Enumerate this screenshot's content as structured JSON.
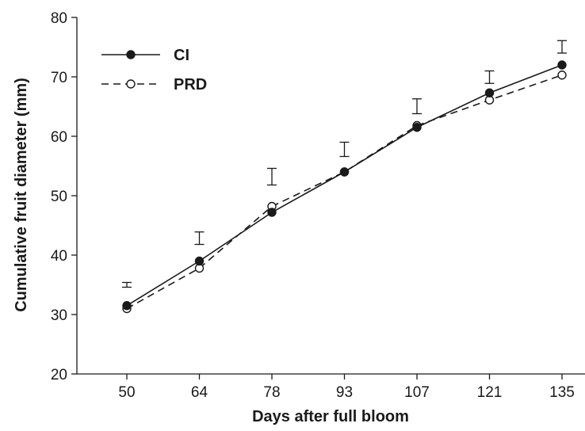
{
  "chart_data": {
    "type": "line",
    "title": "",
    "xlabel": "Days after full bloom",
    "ylabel": "Cumulative fruit diameter (mm)",
    "categories": [
      "50",
      "64",
      "78",
      "93",
      "107",
      "121",
      "135"
    ],
    "x": [
      50,
      64,
      78,
      93,
      107,
      121,
      135
    ],
    "ylim": [
      20,
      80
    ],
    "yticks": [
      "20",
      "30",
      "40",
      "50",
      "60",
      "70",
      "80"
    ],
    "grid": false,
    "legend_position": "top-left",
    "series": [
      {
        "name": "CI",
        "values": [
          31.5,
          39.0,
          47.2,
          54.0,
          61.5,
          67.3,
          72.0
        ],
        "line_style": "solid",
        "marker": "filled-circle",
        "color": "#1a1a1a"
      },
      {
        "name": "PRD",
        "values": [
          31.0,
          37.8,
          48.2,
          54.0,
          61.8,
          66.1,
          70.3
        ],
        "line_style": "dashed",
        "marker": "open-circle",
        "color": "#1a1a1a"
      }
    ],
    "error_bars": [
      {
        "x": 50,
        "low": 34.6,
        "high": 35.4
      },
      {
        "x": 64,
        "low": 41.8,
        "high": 43.9
      },
      {
        "x": 78,
        "low": 51.8,
        "high": 54.6
      },
      {
        "x": 93,
        "low": 56.6,
        "high": 59.0
      },
      {
        "x": 107,
        "low": 63.8,
        "high": 66.3
      },
      {
        "x": 121,
        "low": 68.9,
        "high": 71.0
      },
      {
        "x": 135,
        "low": 74.0,
        "high": 76.1
      }
    ]
  }
}
